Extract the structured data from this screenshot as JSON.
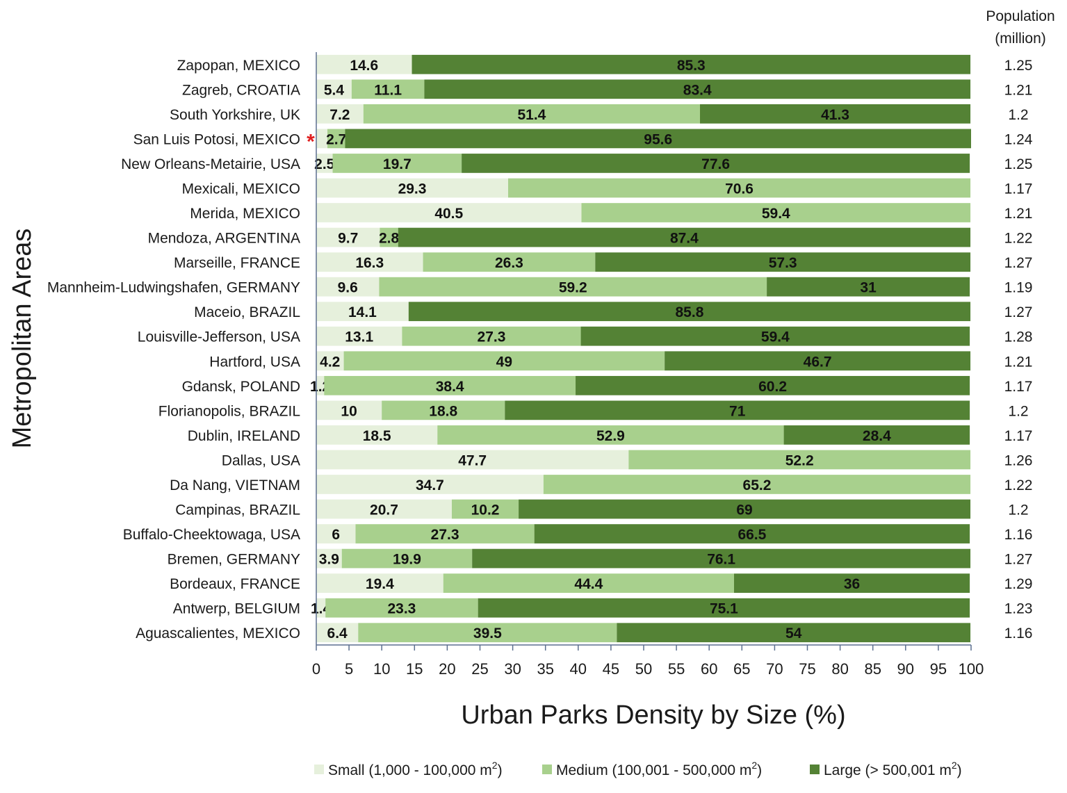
{
  "chart_data": {
    "type": "bar",
    "orientation": "horizontal",
    "stacked": true,
    "xlabel": "Urban Parks Density by Size (%)",
    "ylabel": "Metropolitan Areas",
    "xlim": [
      0,
      100
    ],
    "xticks": [
      0,
      5,
      10,
      15,
      20,
      25,
      30,
      35,
      40,
      45,
      50,
      55,
      60,
      65,
      70,
      75,
      80,
      85,
      90,
      95,
      100
    ],
    "secondary_label": [
      "Population",
      "(million)"
    ],
    "legend_position": "bottom",
    "categories": [
      "Zapopan, MEXICO",
      "Zagreb, CROATIA",
      "South Yorkshire, UK",
      "San Luis Potosi, MEXICO",
      "New Orleans-Metairie, USA",
      "Mexicali, MEXICO",
      "Merida, MEXICO",
      "Mendoza, ARGENTINA",
      "Marseille, FRANCE",
      "Mannheim-Ludwingshafen, GERMANY",
      "Maceio, BRAZIL",
      "Louisville-Jefferson, USA",
      "Hartford, USA",
      "Gdansk, POLAND",
      "Florianopolis, BRAZIL",
      "Dublin, IRELAND",
      "Dallas, USA",
      "Da Nang, VIETNAM",
      "Campinas, BRAZIL",
      "Buffalo-Cheektowaga, USA",
      "Bremen, GERMANY",
      "Bordeaux, FRANCE",
      "Antwerp, BELGIUM",
      "Aguascalientes, MEXICO"
    ],
    "population": [
      "1.25",
      "1.21",
      "1.2",
      "1.24",
      "1.25",
      "1.17",
      "1.21",
      "1.22",
      "1.27",
      "1.19",
      "1.27",
      "1.28",
      "1.21",
      "1.17",
      "1.2",
      "1.17",
      "1.26",
      "1.22",
      "1.2",
      "1.16",
      "1.27",
      "1.29",
      "1.23",
      "1.16"
    ],
    "series": [
      {
        "name": "Small (1,000 - 100,000 m²)",
        "legend_main": "Small (1,000 - 100,000 m",
        "legend_tail": ")",
        "color": "#e6f0dc",
        "values": [
          14.6,
          5.4,
          7.2,
          1.7,
          2.5,
          29.3,
          40.5,
          9.7,
          16.3,
          9.6,
          14.1,
          13.1,
          4.2,
          1.2,
          10,
          18.5,
          47.7,
          34.7,
          20.7,
          6,
          3.9,
          19.4,
          1.4,
          6.4
        ],
        "labels": [
          "14.6",
          "5.4",
          "7.2",
          "",
          "2.5",
          "29.3",
          "40.5",
          "9.7",
          "16.3",
          "9.6",
          "14.1",
          "13.1",
          "4.2",
          "1.2",
          "10",
          "18.5",
          "47.7",
          "34.7",
          "20.7",
          "6",
          "3.9",
          "19.4",
          "1.4",
          "6.4"
        ]
      },
      {
        "name": "Medium (100,001 - 500,000 m²)",
        "legend_main": "Medium (100,001 - 500,000 m",
        "legend_tail": ")",
        "color": "#a8d08d",
        "values": [
          0,
          11.1,
          51.4,
          2.7,
          19.7,
          70.6,
          59.4,
          2.8,
          26.3,
          59.2,
          0,
          27.3,
          49,
          38.4,
          18.8,
          52.9,
          52.2,
          65.2,
          10.2,
          27.3,
          19.9,
          44.4,
          23.3,
          39.5
        ],
        "labels": [
          "",
          "11.1",
          "51.4",
          "2.7",
          "19.7",
          "70.6",
          "59.4",
          "2.8",
          "26.3",
          "59.2",
          "",
          "27.3",
          "49",
          "38.4",
          "18.8",
          "52.9",
          "52.2",
          "65.2",
          "10.2",
          "27.3",
          "19.9",
          "44.4",
          "23.3",
          "39.5"
        ]
      },
      {
        "name": "Large (> 500,001 m²)",
        "legend_main": "Large (> 500,001 m",
        "legend_tail": ")",
        "color": "#548235",
        "values": [
          85.3,
          83.4,
          41.3,
          95.6,
          77.6,
          0,
          0,
          87.4,
          57.3,
          31,
          85.8,
          59.4,
          46.7,
          60.2,
          71,
          28.4,
          0,
          0,
          69,
          66.5,
          76.1,
          36,
          75.1,
          54
        ],
        "labels": [
          "85.3",
          "83.4",
          "41.3",
          "95.6",
          "77.6",
          "",
          "",
          "87.4",
          "57.3",
          "31",
          "85.8",
          "59.4",
          "46.7",
          "60.2",
          "71",
          "28.4",
          "",
          "",
          "69",
          "66.5",
          "76.1",
          "36",
          "75.1",
          "54"
        ]
      }
    ],
    "annotation": {
      "symbol": "*",
      "category": "San Luis Potosi, MEXICO",
      "color": "#e02020"
    },
    "legend_superscript": "2"
  }
}
